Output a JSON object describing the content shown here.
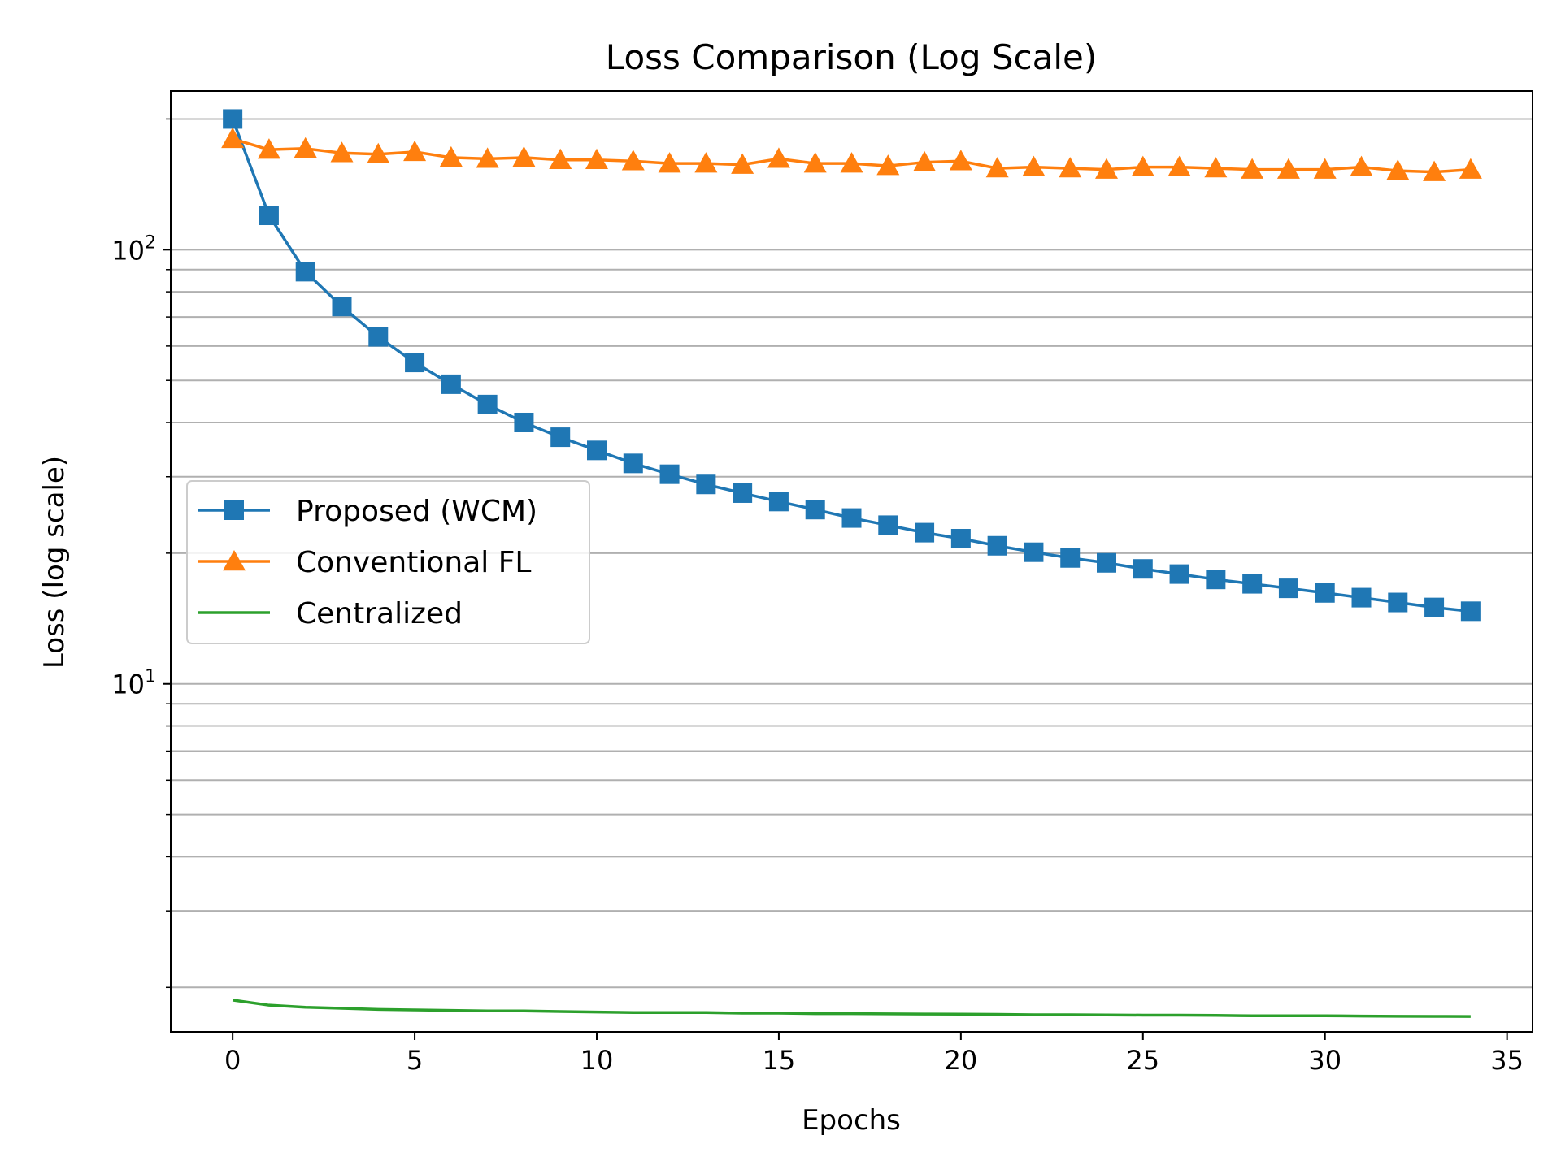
{
  "chart_data": {
    "type": "line",
    "title": "Loss Comparison (Log Scale)",
    "xlabel": "Epochs",
    "ylabel": "Loss (log scale)",
    "yscale": "log",
    "xlim": [
      -1.7,
      35.7
    ],
    "ylim": [
      1.58,
      232
    ],
    "x_ticks": [
      0,
      5,
      10,
      15,
      20,
      25,
      30,
      35
    ],
    "y_major_ticks": [
      {
        "base": "10",
        "exp": "1",
        "value": 10
      },
      {
        "base": "10",
        "exp": "2",
        "value": 100
      }
    ],
    "grid": "horizontal",
    "legend_placement": "center-left",
    "x": [
      0,
      1,
      2,
      3,
      4,
      5,
      6,
      7,
      8,
      9,
      10,
      11,
      12,
      13,
      14,
      15,
      16,
      17,
      18,
      19,
      20,
      21,
      22,
      23,
      24,
      25,
      26,
      27,
      28,
      29,
      30,
      31,
      32,
      33,
      34
    ],
    "series": [
      {
        "name": "Proposed (WCM)",
        "color": "#1f77b4",
        "marker": "square",
        "values": [
          200,
          120,
          89,
          74,
          63,
          55,
          49,
          44,
          40,
          37,
          34.5,
          32.2,
          30.4,
          28.8,
          27.5,
          26.3,
          25.2,
          24.1,
          23.2,
          22.3,
          21.6,
          20.8,
          20.1,
          19.5,
          19.0,
          18.4,
          17.9,
          17.4,
          17.0,
          16.6,
          16.2,
          15.8,
          15.4,
          15.0,
          14.7
        ]
      },
      {
        "name": "Conventional FL",
        "color": "#ff7f0e",
        "marker": "triangle",
        "values": [
          180,
          170,
          171,
          167,
          166,
          168,
          163,
          162,
          163,
          161,
          161,
          160,
          158,
          158,
          157,
          162,
          158,
          158,
          156,
          159,
          160,
          154,
          155,
          154,
          153,
          155,
          155,
          154,
          153,
          153,
          153,
          155,
          152,
          151,
          153
        ]
      },
      {
        "name": "Centralized",
        "color": "#2ca02c",
        "marker": "none",
        "values": [
          1.87,
          1.82,
          1.8,
          1.79,
          1.78,
          1.775,
          1.77,
          1.765,
          1.765,
          1.76,
          1.755,
          1.75,
          1.75,
          1.75,
          1.745,
          1.745,
          1.74,
          1.74,
          1.738,
          1.736,
          1.735,
          1.733,
          1.73,
          1.73,
          1.728,
          1.726,
          1.726,
          1.724,
          1.72,
          1.72,
          1.72,
          1.718,
          1.716,
          1.715,
          1.714
        ]
      }
    ]
  }
}
